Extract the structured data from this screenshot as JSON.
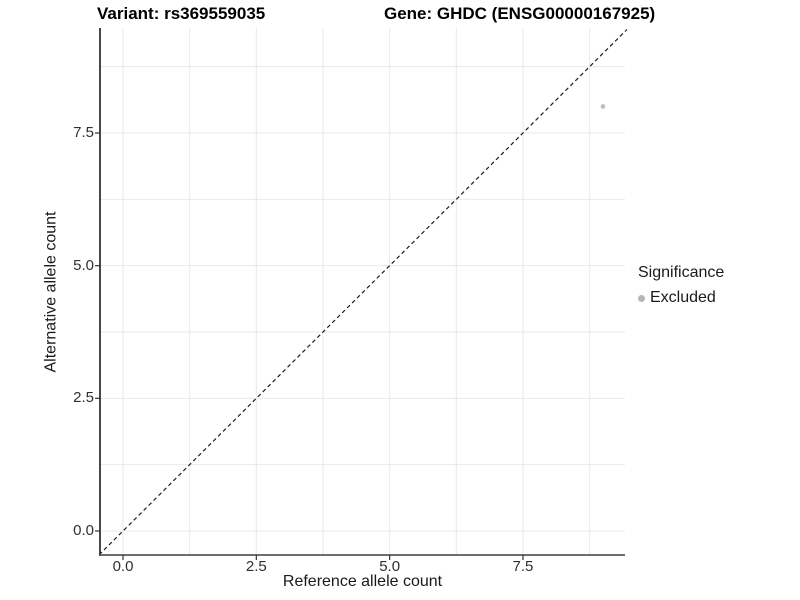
{
  "header": {
    "variant_title": "Variant: rs369559035",
    "gene_title": "Gene: GHDC (ENSG00000167925)"
  },
  "chart_data": {
    "type": "scatter",
    "title": "Variant: rs369559035 — Gene: GHDC (ENSG00000167925)",
    "xlabel": "Reference allele count",
    "ylabel": "Alternative allele count",
    "x_tick_labels": [
      "0.0",
      "2.5",
      "5.0",
      "7.5"
    ],
    "y_tick_labels": [
      "0.0",
      "2.5",
      "5.0",
      "7.5"
    ],
    "x_tick_values": [
      0,
      2.5,
      5,
      7.5
    ],
    "y_tick_values": [
      0,
      2.5,
      5,
      7.5
    ],
    "xlim": [
      -0.45,
      9.45
    ],
    "ylim": [
      -0.45,
      9.45
    ],
    "minor_step": 1.25,
    "grid": true,
    "series": [
      {
        "name": "Excluded",
        "points": [
          {
            "x": 9,
            "y": 8
          }
        ],
        "color": "#bdbdbd",
        "marker_radius": 2.3
      }
    ],
    "reference_line": {
      "style": "dashed",
      "slope": 1,
      "intercept": 0,
      "color": "#1a1a1a"
    },
    "legend": {
      "title": "Significance",
      "position": "right",
      "entries": [
        {
          "label": "Excluded",
          "color": "#b5b5b5"
        }
      ]
    },
    "colors": {
      "grid": "#e9e9e9",
      "x_axis_line": "#595959",
      "y_axis_line": "#1a1a1a",
      "tick_mark": "#333333",
      "background": "#ffffff"
    }
  }
}
